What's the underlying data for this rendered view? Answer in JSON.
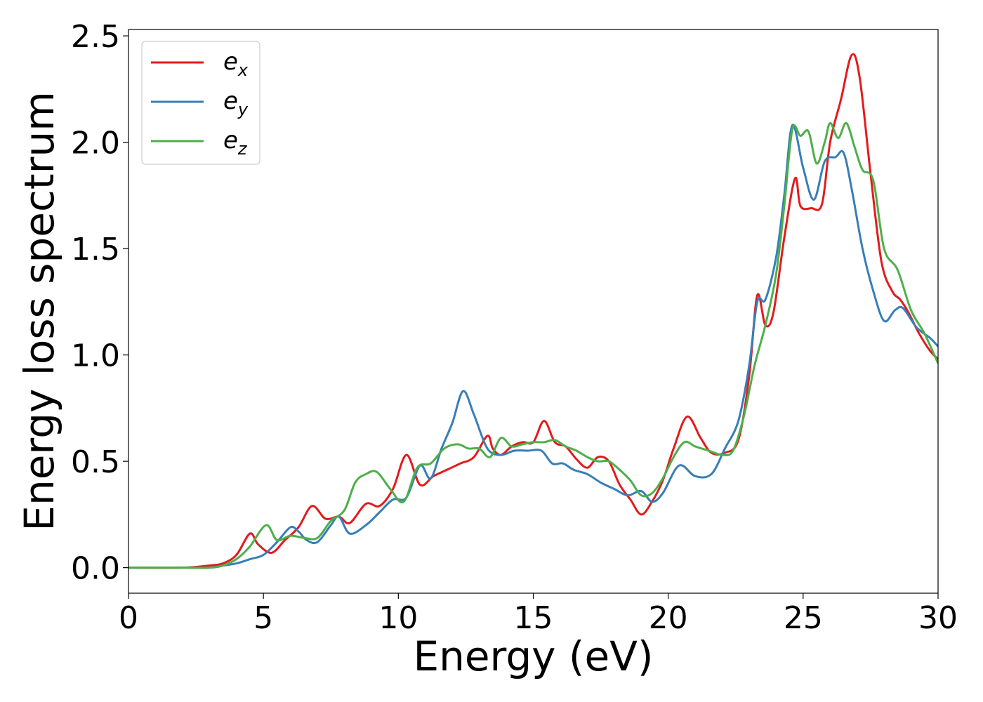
{
  "chart_data": {
    "type": "line",
    "xlabel": "Energy (eV)",
    "ylabel": "Energy loss spectrum",
    "xlim": [
      0,
      30
    ],
    "ylim": [
      -0.12,
      2.53
    ],
    "xticks": [
      "0",
      "5",
      "10",
      "15",
      "20",
      "25",
      "30"
    ],
    "yticks": [
      "0.0",
      "0.5",
      "1.0",
      "1.5",
      "2.0",
      "2.5"
    ],
    "legend_position": "upper-left",
    "grid": false,
    "series": [
      {
        "name": "e_x",
        "label_base": "e",
        "label_sub": "x",
        "color": "#e41a1c",
        "x": [
          0,
          2,
          3,
          3.5,
          4,
          4.5,
          4.8,
          5.3,
          5.8,
          6.3,
          6.8,
          7.3,
          7.8,
          8.2,
          8.8,
          9.3,
          9.8,
          10.3,
          10.8,
          11.3,
          11.8,
          12.3,
          12.8,
          13.3,
          13.5,
          13.8,
          14.2,
          14.6,
          15,
          15.4,
          15.8,
          16.2,
          16.6,
          17,
          17.4,
          17.8,
          18.2,
          18.6,
          19,
          19.4,
          19.8,
          20.2,
          20.7,
          21.2,
          21.6,
          22.1,
          22.6,
          23,
          23.3,
          23.6,
          23.9,
          24.3,
          24.7,
          24.9,
          25.3,
          25.7,
          26,
          26.4,
          26.8,
          27.1,
          27.5,
          27.9,
          28.3,
          28.6,
          28.9,
          29.3,
          29.7,
          30
        ],
        "y": [
          0,
          0.0,
          0.01,
          0.02,
          0.06,
          0.16,
          0.11,
          0.07,
          0.13,
          0.19,
          0.29,
          0.23,
          0.24,
          0.21,
          0.3,
          0.29,
          0.37,
          0.53,
          0.39,
          0.43,
          0.46,
          0.49,
          0.52,
          0.62,
          0.56,
          0.53,
          0.57,
          0.59,
          0.59,
          0.69,
          0.59,
          0.57,
          0.51,
          0.47,
          0.52,
          0.5,
          0.39,
          0.32,
          0.25,
          0.31,
          0.41,
          0.56,
          0.71,
          0.61,
          0.54,
          0.54,
          0.6,
          0.9,
          1.28,
          1.14,
          1.2,
          1.55,
          1.83,
          1.7,
          1.69,
          1.71,
          2.0,
          2.2,
          2.41,
          2.3,
          1.85,
          1.44,
          1.3,
          1.26,
          1.2,
          1.1,
          1.02,
          0.98
        ]
      },
      {
        "name": "e_y",
        "label_base": "e",
        "label_sub": "y",
        "color": "#377eb8",
        "x": [
          0,
          2,
          3,
          3.5,
          4,
          4.5,
          5,
          5.5,
          6,
          6.3,
          6.6,
          7,
          7.5,
          7.8,
          8.2,
          8.8,
          9.3,
          9.8,
          10.3,
          10.8,
          11.2,
          11.6,
          12,
          12.4,
          12.8,
          13.3,
          13.8,
          14.3,
          14.8,
          15.3,
          15.7,
          16.1,
          16.5,
          17,
          17.5,
          18,
          18.5,
          19,
          19.4,
          19.8,
          20.4,
          21,
          21.6,
          22.1,
          22.6,
          23,
          23.3,
          23.6,
          24,
          24.3,
          24.6,
          25,
          25.4,
          25.8,
          26.2,
          26.5,
          26.8,
          27.2,
          27.6,
          28,
          28.4,
          28.7,
          29.2,
          29.7,
          30
        ],
        "y": [
          0,
          0.0,
          0.0,
          0.01,
          0.02,
          0.04,
          0.06,
          0.12,
          0.19,
          0.17,
          0.13,
          0.12,
          0.2,
          0.24,
          0.16,
          0.2,
          0.26,
          0.32,
          0.33,
          0.48,
          0.42,
          0.56,
          0.68,
          0.83,
          0.72,
          0.56,
          0.53,
          0.55,
          0.55,
          0.55,
          0.49,
          0.49,
          0.46,
          0.44,
          0.4,
          0.37,
          0.34,
          0.36,
          0.31,
          0.35,
          0.48,
          0.43,
          0.44,
          0.56,
          0.69,
          0.95,
          1.25,
          1.26,
          1.46,
          1.75,
          2.08,
          1.88,
          1.73,
          1.91,
          1.93,
          1.95,
          1.78,
          1.5,
          1.3,
          1.16,
          1.21,
          1.22,
          1.13,
          1.08,
          1.04
        ]
      },
      {
        "name": "e_z",
        "label_base": "e",
        "label_sub": "z",
        "color": "#4daf4a",
        "x": [
          0,
          2,
          3,
          3.5,
          4,
          4.5,
          5.1,
          5.5,
          6,
          6.5,
          7,
          7.5,
          8,
          8.4,
          8.8,
          9.2,
          9.7,
          10.2,
          10.7,
          11.2,
          11.7,
          12.2,
          12.6,
          13,
          13.4,
          13.8,
          14.2,
          14.6,
          15,
          15.4,
          15.8,
          16.2,
          16.6,
          17,
          17.4,
          17.8,
          18.2,
          18.6,
          19,
          19.4,
          19.8,
          20.2,
          20.6,
          21,
          21.5,
          22,
          22.4,
          22.8,
          23.2,
          23.6,
          24,
          24.3,
          24.6,
          24.9,
          25.2,
          25.5,
          25.8,
          26,
          26.3,
          26.6,
          26.9,
          27.2,
          27.6,
          28,
          28.5,
          29,
          29.5,
          30
        ],
        "y": [
          0,
          0.0,
          0.0,
          0.01,
          0.04,
          0.1,
          0.2,
          0.13,
          0.15,
          0.14,
          0.14,
          0.22,
          0.27,
          0.4,
          0.44,
          0.45,
          0.37,
          0.31,
          0.47,
          0.49,
          0.56,
          0.58,
          0.56,
          0.56,
          0.52,
          0.61,
          0.57,
          0.58,
          0.59,
          0.59,
          0.6,
          0.57,
          0.55,
          0.52,
          0.5,
          0.5,
          0.46,
          0.41,
          0.34,
          0.35,
          0.42,
          0.52,
          0.59,
          0.57,
          0.55,
          0.53,
          0.55,
          0.71,
          0.95,
          1.14,
          1.38,
          1.7,
          2.06,
          2.03,
          2.05,
          1.9,
          2.0,
          2.09,
          2.02,
          2.09,
          1.98,
          1.87,
          1.82,
          1.5,
          1.4,
          1.21,
          1.1,
          0.96
        ]
      }
    ]
  }
}
